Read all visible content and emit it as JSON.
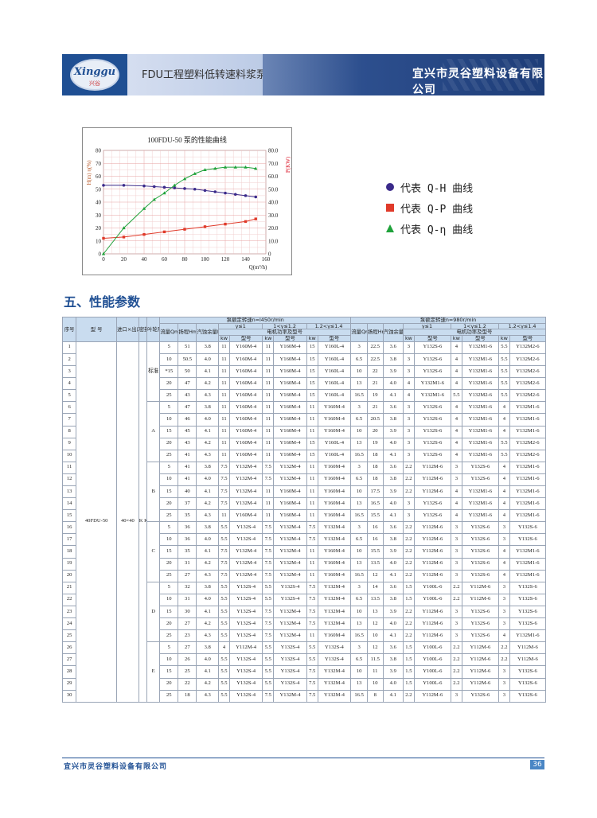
{
  "header": {
    "logo_text": "Xinggu",
    "logo_sub": "兴谷",
    "title": "FDU工程塑料低转速料浆泵",
    "company": "宜兴市灵谷塑料设备有限公司"
  },
  "legend": {
    "items": [
      {
        "marker": "circle",
        "color": "#3a2a8a",
        "label": "代表 Q-H 曲线"
      },
      {
        "marker": "square",
        "color": "#e03a2a",
        "label": "代表 Q-P 曲线"
      },
      {
        "marker": "triangle",
        "color": "#1fa23a",
        "label": "代表 Q-η 曲线"
      }
    ]
  },
  "section_title": "五、性能参数",
  "chart_data": {
    "type": "line",
    "title": "100FDU-50 泵的性能曲线",
    "xlabel": "Q(m³/h)",
    "ylabel_left": "H(m)  η(%)",
    "ylabel_right": "P(KW)",
    "x_ticks": [
      "0",
      "20",
      "40",
      "60",
      "80",
      "100",
      "120",
      "140",
      "160"
    ],
    "left_ticks": [
      "0",
      "10",
      "20",
      "30",
      "40",
      "50",
      "60",
      "70",
      "80"
    ],
    "right_ticks": [
      "0",
      "10.0",
      "20.0",
      "30.0",
      "40.0",
      "50.0",
      "60.0",
      "70.0",
      "80.0"
    ],
    "xlim": [
      0,
      160
    ],
    "ylim": [
      0,
      80
    ],
    "series": [
      {
        "name": "Q-H",
        "color": "#3a2a8a",
        "marker": "circle",
        "x": [
          0,
          20,
          40,
          50,
          60,
          70,
          80,
          90,
          100,
          110,
          120,
          130,
          140,
          150
        ],
        "y": [
          53,
          53,
          52.5,
          52,
          51.5,
          51,
          50.5,
          50,
          49,
          48,
          47,
          46,
          45,
          44
        ]
      },
      {
        "name": "Q-P",
        "color": "#e03a2a",
        "marker": "square",
        "x": [
          0,
          20,
          40,
          60,
          80,
          100,
          120,
          140,
          150
        ],
        "y": [
          12,
          13,
          15,
          17,
          19,
          21,
          23,
          25,
          27
        ]
      },
      {
        "name": "Q-η",
        "color": "#1fa23a",
        "marker": "triangle",
        "x": [
          0,
          20,
          40,
          50,
          60,
          70,
          80,
          90,
          100,
          110,
          120,
          130,
          140,
          150
        ],
        "y": [
          0,
          20,
          35,
          42,
          47,
          53,
          58,
          62,
          65,
          66,
          67,
          67,
          67,
          66
        ]
      }
    ]
  },
  "table": {
    "headers": {
      "seq": "序号",
      "model": "型 号",
      "inout": "进口×出口mm",
      "seal": "密封形式",
      "impeller": "叶轮形式",
      "speed1": "泵额定转速n=l450r/min",
      "speed2": "泵额定转速n=980r/min",
      "flow": "流量Qm³/h",
      "head": "扬程Hm",
      "npsh": "汽蚀余量NPSHrm",
      "g1": "γ≤1",
      "g2": "1<γ≤1.2",
      "g3": "1.2<γ≤1.4",
      "motor": "电机功率及型号",
      "kw": "kw",
      "type": "型号"
    },
    "model_name": "40FDU-50",
    "inout_value": "40×40",
    "seal_value": "K K1 T T1 T2 C3 C4",
    "impeller_groups": [
      "标准",
      "A",
      "B",
      "C",
      "D",
      "E"
    ],
    "rows": [
      [
        "1",
        "5",
        "51",
        "3.8",
        "11",
        "Y160M-4",
        "11",
        "Y160M-4",
        "15",
        "Y160L-4",
        "3",
        "22.5",
        "3.6",
        "3",
        "Y132S-6",
        "4",
        "Y132M1-6",
        "5.5",
        "Y132M2-6"
      ],
      [
        "2",
        "10",
        "50.5",
        "4.0",
        "11",
        "Y160M-4",
        "11",
        "Y160M-4",
        "15",
        "Y160L-4",
        "6.5",
        "22.5",
        "3.8",
        "3",
        "Y132S-6",
        "4",
        "Y132M1-6",
        "5.5",
        "Y132M2-6"
      ],
      [
        "3",
        "*15",
        "50",
        "4.1",
        "11",
        "Y160M-4",
        "11",
        "Y160M-4",
        "15",
        "Y160L-4",
        "10",
        "22",
        "3.9",
        "3",
        "Y132S-6",
        "4",
        "Y132M1-6",
        "5.5",
        "Y132M2-6"
      ],
      [
        "4",
        "20",
        "47",
        "4.2",
        "11",
        "Y160M-4",
        "11",
        "Y160M-4",
        "15",
        "Y160L-4",
        "13",
        "21",
        "4.0",
        "4",
        "Y132M1-6",
        "4",
        "Y132M1-6",
        "5.5",
        "Y132M2-6"
      ],
      [
        "5",
        "25",
        "43",
        "4.3",
        "11",
        "Y160M-4",
        "11",
        "Y160M-4",
        "15",
        "Y160L-4",
        "16.5",
        "19",
        "4.1",
        "4",
        "Y132M1-6",
        "5.5",
        "Y132M2-6",
        "5.5",
        "Y132M2-6"
      ],
      [
        "6",
        "5",
        "47",
        "3.8",
        "11",
        "Y160M-4",
        "11",
        "Y160M-4",
        "11",
        "Y160M-4",
        "3",
        "21",
        "3.6",
        "3",
        "Y132S-6",
        "4",
        "Y132M1-6",
        "4",
        "Y132M1-6"
      ],
      [
        "7",
        "10",
        "46",
        "4.0",
        "11",
        "Y160M-4",
        "11",
        "Y160M-4",
        "11",
        "Y160M-4",
        "6.5",
        "20.5",
        "3.8",
        "3",
        "Y132S-6",
        "4",
        "Y132M1-6",
        "4",
        "Y132M1-6"
      ],
      [
        "8",
        "15",
        "45",
        "4.1",
        "11",
        "Y160M-4",
        "11",
        "Y160M-4",
        "11",
        "Y160M-4",
        "10",
        "20",
        "3.9",
        "3",
        "Y132S-6",
        "4",
        "Y132M1-6",
        "4",
        "Y132M1-6"
      ],
      [
        "9",
        "20",
        "43",
        "4.2",
        "11",
        "Y160M-4",
        "11",
        "Y160M-4",
        "15",
        "Y160L-4",
        "13",
        "19",
        "4.0",
        "3",
        "Y132S-6",
        "4",
        "Y132M1-6",
        "5.5",
        "Y132M2-6"
      ],
      [
        "10",
        "25",
        "41",
        "4.3",
        "11",
        "Y160M-4",
        "11",
        "Y160M-4",
        "15",
        "Y160L-4",
        "16.5",
        "18",
        "4.1",
        "3",
        "Y132S-6",
        "4",
        "Y132M1-6",
        "5.5",
        "Y132M2-6"
      ],
      [
        "11",
        "5",
        "41",
        "3.8",
        "7.5",
        "Y132M-4",
        "7.5",
        "Y132M-4",
        "11",
        "Y160M-4",
        "3",
        "18",
        "3.6",
        "2.2",
        "Y112M-6",
        "3",
        "Y132S-6",
        "4",
        "Y132M1-6"
      ],
      [
        "12",
        "10",
        "41",
        "4.0",
        "7.5",
        "Y132M-4",
        "7.5",
        "Y132M-4",
        "11",
        "Y160M-4",
        "6.5",
        "18",
        "3.8",
        "2.2",
        "Y112M-6",
        "3",
        "Y132S-6",
        "4",
        "Y132M1-6"
      ],
      [
        "13",
        "15",
        "40",
        "4.1",
        "7.5",
        "Y132M-4",
        "11",
        "Y160M-4",
        "11",
        "Y160M-4",
        "10",
        "17.5",
        "3.9",
        "2.2",
        "Y112M-6",
        "4",
        "Y132M1-6",
        "4",
        "Y132M1-6"
      ],
      [
        "14",
        "20",
        "37",
        "4.2",
        "7.5",
        "Y132M-4",
        "11",
        "Y160M-4",
        "11",
        "Y160M-4",
        "13",
        "16.5",
        "4.0",
        "3",
        "Y132S-6",
        "4",
        "Y132M1-6",
        "4",
        "Y132M1-6"
      ],
      [
        "15",
        "25",
        "35",
        "4.3",
        "11",
        "Y160M-4",
        "11",
        "Y160M-4",
        "11",
        "Y160M-4",
        "16.5",
        "15.5",
        "4.1",
        "3",
        "Y132S-6",
        "4",
        "Y132M1-6",
        "4",
        "Y132M1-6"
      ],
      [
        "16",
        "5",
        "36",
        "3.8",
        "5.5",
        "Y132S-4",
        "7.5",
        "Y132M-4",
        "7.5",
        "Y132M-4",
        "3",
        "16",
        "3.6",
        "2.2",
        "Y112M-6",
        "3",
        "Y132S-6",
        "3",
        "Y132S-6"
      ],
      [
        "17",
        "10",
        "36",
        "4.0",
        "5.5",
        "Y132S-4",
        "7.5",
        "Y132M-4",
        "7.5",
        "Y132M-4",
        "6.5",
        "16",
        "3.8",
        "2.2",
        "Y112M-6",
        "3",
        "Y132S-6",
        "3",
        "Y132S-6"
      ],
      [
        "18",
        "15",
        "35",
        "4.1",
        "7.5",
        "Y132M-4",
        "7.5",
        "Y132M-4",
        "11",
        "Y160M-4",
        "10",
        "15.5",
        "3.9",
        "2.2",
        "Y112M-6",
        "3",
        "Y132S-6",
        "4",
        "Y132M1-6"
      ],
      [
        "19",
        "20",
        "31",
        "4.2",
        "7.5",
        "Y132M-4",
        "7.5",
        "Y132M-4",
        "11",
        "Y160M-4",
        "13",
        "13.5",
        "4.0",
        "2.2",
        "Y112M-6",
        "3",
        "Y132S-6",
        "4",
        "Y132M1-6"
      ],
      [
        "20",
        "25",
        "27",
        "4.3",
        "7.5",
        "Y132M-4",
        "7.5",
        "Y132M-4",
        "11",
        "Y160M-4",
        "16.5",
        "12",
        "4.1",
        "2.2",
        "Y112M-6",
        "3",
        "Y132S-6",
        "4",
        "Y132M1-6"
      ],
      [
        "21",
        "5",
        "32",
        "3.8",
        "5.5",
        "Y132S-4",
        "5.5",
        "Y132S-4",
        "7.5",
        "Y132M-4",
        "3",
        "14",
        "3.6",
        "1.5",
        "Y100L-6",
        "2.2",
        "Y112M-6",
        "3",
        "Y132S-6"
      ],
      [
        "22",
        "10",
        "31",
        "4.0",
        "5.5",
        "Y132S-4",
        "5.5",
        "Y132S-4",
        "7.5",
        "Y132M-4",
        "6.5",
        "13.5",
        "3.8",
        "1.5",
        "Y100L-6",
        "2.2",
        "Y112M-6",
        "3",
        "Y132S-6"
      ],
      [
        "23",
        "15",
        "30",
        "4.1",
        "5.5",
        "Y132S-4",
        "7.5",
        "Y132M-4",
        "7.5",
        "Y132M-4",
        "10",
        "13",
        "3.9",
        "2.2",
        "Y112M-6",
        "3",
        "Y132S-6",
        "3",
        "Y132S-6"
      ],
      [
        "24",
        "20",
        "27",
        "4.2",
        "5.5",
        "Y132S-4",
        "7.5",
        "Y132M-4",
        "7.5",
        "Y132M-4",
        "13",
        "12",
        "4.0",
        "2.2",
        "Y112M-6",
        "3",
        "Y132S-6",
        "3",
        "Y132S-6"
      ],
      [
        "25",
        "25",
        "23",
        "4.3",
        "5.5",
        "Y132S-4",
        "7.5",
        "Y132M-4",
        "11",
        "Y160M-4",
        "16.5",
        "10",
        "4.1",
        "2.2",
        "Y112M-6",
        "3",
        "Y132S-6",
        "4",
        "Y132M1-6"
      ],
      [
        "26",
        "5",
        "27",
        "3.8",
        "4",
        "Y112M-4",
        "5.5",
        "Y132S-4",
        "5.5",
        "Y132S-4",
        "3",
        "12",
        "3.6",
        "1.5",
        "Y100L-6",
        "2.2",
        "Y112M-6",
        "2.2",
        "Y112M-6"
      ],
      [
        "27",
        "10",
        "26",
        "4.0",
        "5.5",
        "Y132S-4",
        "5.5",
        "Y132S-4",
        "5.5",
        "Y132S-4",
        "6.5",
        "11.5",
        "3.8",
        "1.5",
        "Y100L-6",
        "2.2",
        "Y112M-6",
        "2.2",
        "Y112M-6"
      ],
      [
        "28",
        "15",
        "25",
        "4.1",
        "5.5",
        "Y132S-4",
        "5.5",
        "Y132S-4",
        "7.5",
        "Y132M-4",
        "10",
        "11",
        "3.9",
        "1.5",
        "Y100L-6",
        "2.2",
        "Y112M-6",
        "3",
        "Y132S-6"
      ],
      [
        "29",
        "20",
        "22",
        "4.2",
        "5.5",
        "Y132S-4",
        "5.5",
        "Y132S-4",
        "7.5",
        "Y132M-4",
        "13",
        "10",
        "4.0",
        "1.5",
        "Y100L-6",
        "2.2",
        "Y112M-6",
        "3",
        "Y132S-6"
      ],
      [
        "30",
        "25",
        "18",
        "4.3",
        "5.5",
        "Y132S-4",
        "7.5",
        "Y132M-4",
        "7.5",
        "Y132M-4",
        "16.5",
        "8",
        "4.1",
        "2.2",
        "Y112M-6",
        "3",
        "Y132S-6",
        "3",
        "Y132S-6"
      ]
    ]
  },
  "footer": {
    "company": "宜兴市灵谷塑料设备有限公司",
    "page": "36"
  }
}
